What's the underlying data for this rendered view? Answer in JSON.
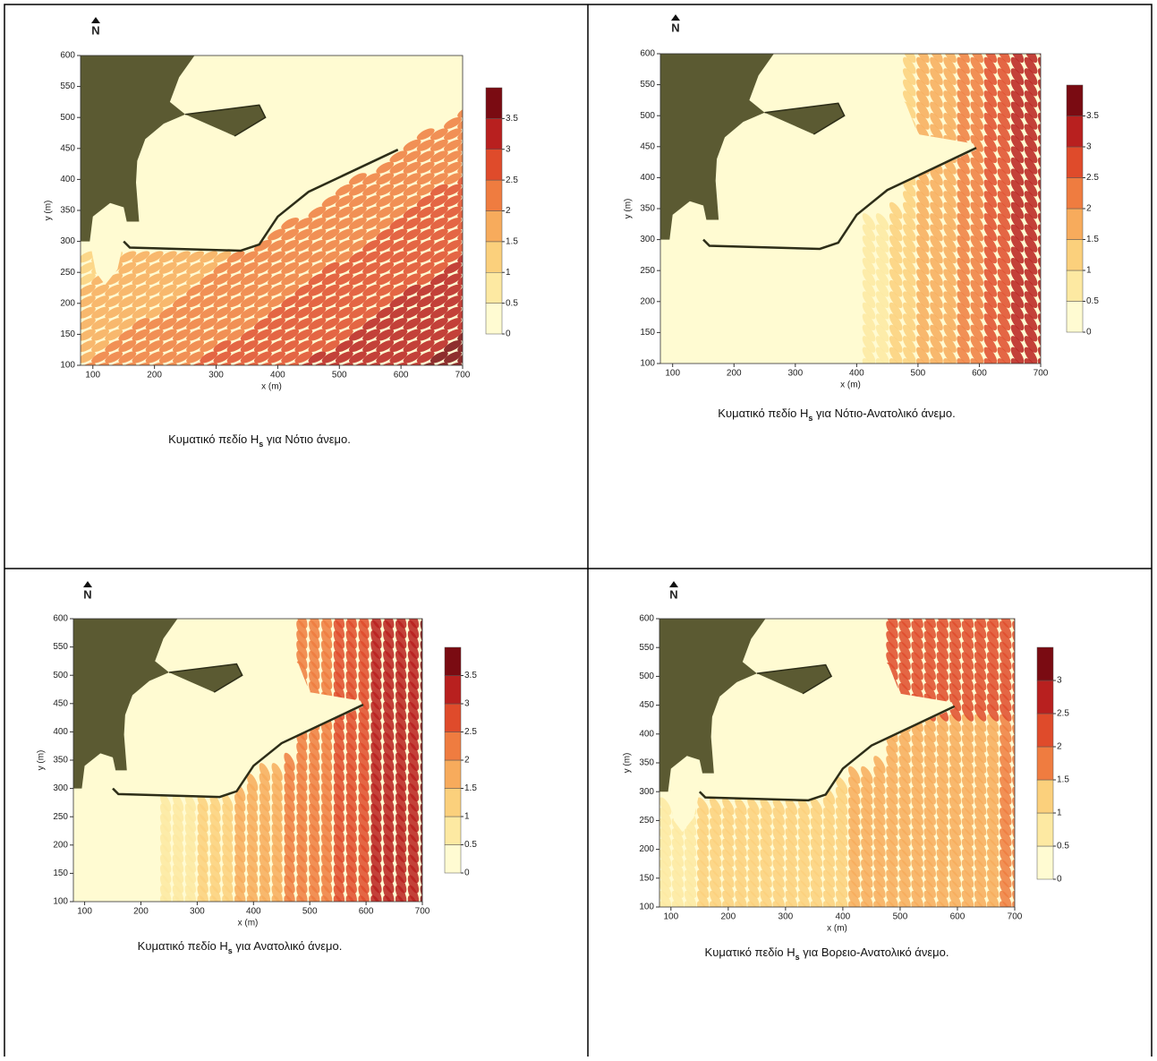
{
  "north_label": "N",
  "x_label": "x (m)",
  "y_label": "y (m)",
  "xlim": [
    80,
    700
  ],
  "ylim": [
    100,
    600
  ],
  "xticks": [
    100,
    200,
    300,
    400,
    500,
    600,
    700
  ],
  "yticks": [
    100,
    150,
    200,
    250,
    300,
    350,
    400,
    450,
    500,
    550,
    600
  ],
  "panels": [
    {
      "caption": {
        "before": "Κυματικό πεδίο H",
        "subscript": "s",
        "after": " για Νότιο άνεμο."
      },
      "colorbar_ticks": [
        0,
        0.5,
        1,
        1.5,
        2,
        2.5,
        3,
        3.5
      ]
    },
    {
      "caption": {
        "before": "Κυματικό πεδίο H",
        "subscript": "s",
        "after": " για Νότιο-Ανατολικό άνεμο."
      },
      "colorbar_ticks": [
        0,
        0.5,
        1,
        1.5,
        2,
        2.5,
        3,
        3.5
      ]
    },
    {
      "caption": {
        "before": "Κυματικό πεδίο H",
        "subscript": "s",
        "after": " για Ανατολικό άνεμο."
      },
      "colorbar_ticks": [
        0,
        0.5,
        1,
        1.5,
        2,
        2.5,
        3,
        3.5
      ]
    },
    {
      "caption": {
        "before": "Κυματικό πεδίο H",
        "subscript": "s",
        "after": " για Βορειο-Ανατολικό άνεμο."
      },
      "colorbar_ticks": [
        0,
        0.5,
        1,
        1.5,
        2,
        2.5,
        3
      ]
    }
  ]
}
